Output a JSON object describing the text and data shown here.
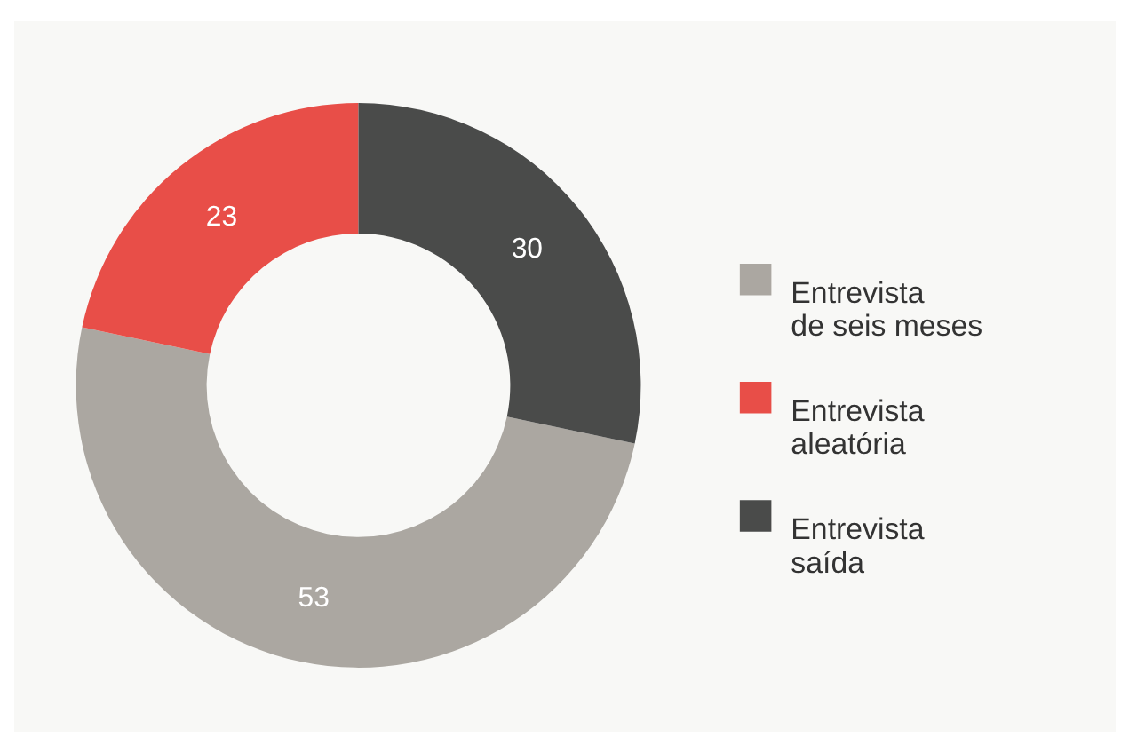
{
  "chart_data": {
    "type": "donut",
    "categories": [
      "Entrevista de seis meses",
      "Entrevista aleatória",
      "Entrevista saída"
    ],
    "values": [
      53,
      23,
      30
    ],
    "colors": [
      "#aba7a1",
      "#e84e48",
      "#4a4b4a"
    ],
    "data_labels": true,
    "legend": "right"
  }
}
